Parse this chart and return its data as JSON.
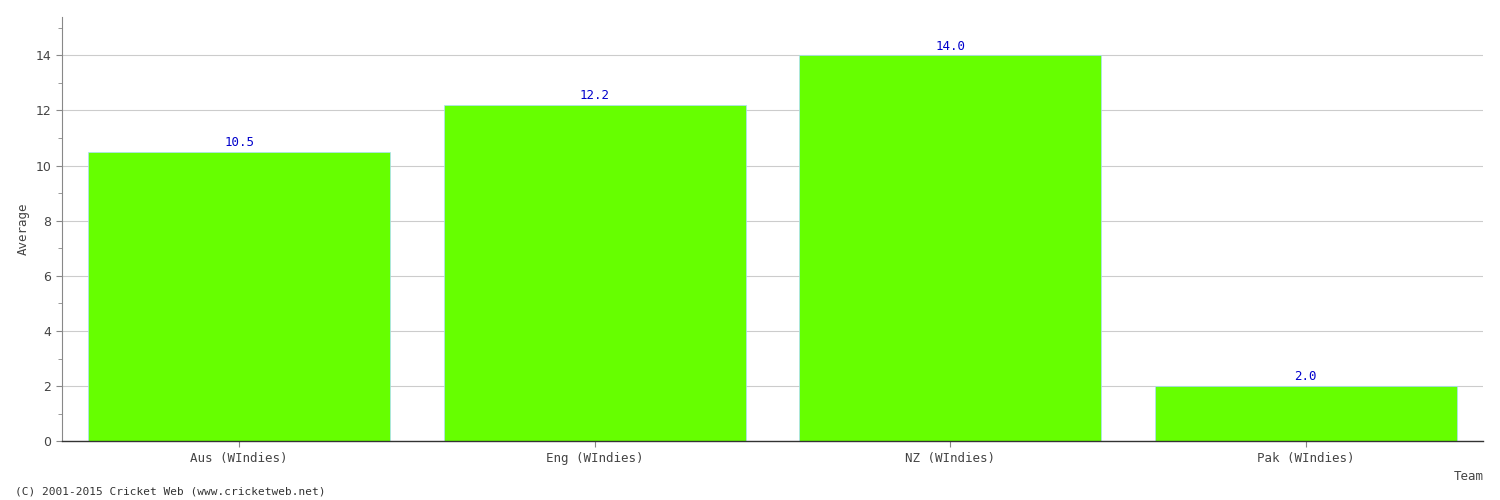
{
  "categories": [
    "Aus (WIndies)",
    "Eng (WIndies)",
    "NZ (WIndies)",
    "Pak (WIndies)"
  ],
  "values": [
    10.5,
    12.2,
    14.0,
    2.0
  ],
  "bar_color": "#66ff00",
  "bar_edge_color": "#66ff00",
  "label_color": "#0000cc",
  "ylabel": "Average",
  "xlabel": "Team",
  "ylim": [
    0,
    15.4
  ],
  "yticks": [
    0,
    2,
    4,
    6,
    8,
    10,
    12,
    14
  ],
  "background_color": "#ffffff",
  "grid_color": "#cccccc",
  "annotation_fontsize": 9,
  "axis_label_fontsize": 9,
  "tick_fontsize": 9,
  "footer_text": "(C) 2001-2015 Cricket Web (www.cricketweb.net)",
  "footer_fontsize": 8,
  "footer_color": "#333333"
}
